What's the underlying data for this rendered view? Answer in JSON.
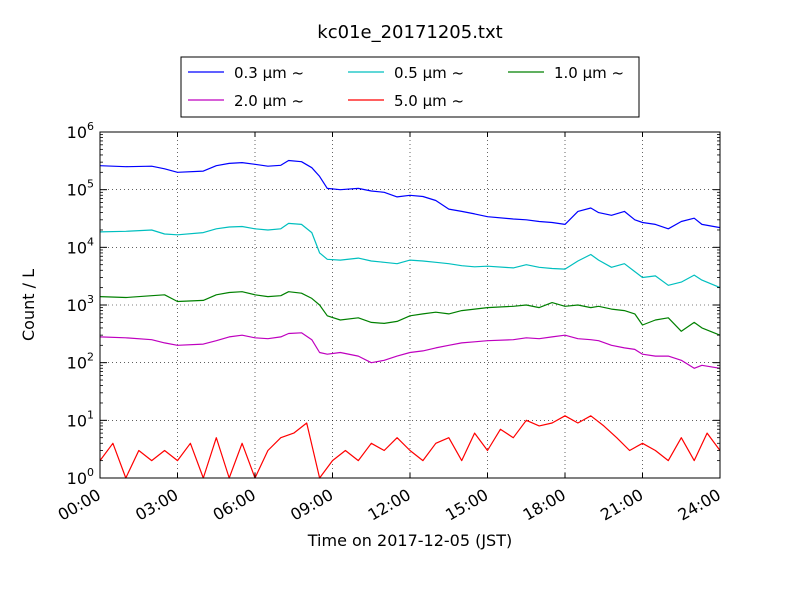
{
  "chart_data": {
    "type": "line",
    "title": "kc01e_20171205.txt",
    "xlabel": "Time on 2017-12-05 (JST)",
    "ylabel": "Count / L",
    "x_unit": "hours",
    "xlim": [
      0,
      24
    ],
    "ylim": [
      1,
      1000000
    ],
    "yscale": "log",
    "grid": true,
    "legend_location": "top-center",
    "x_ticks": [
      "00:00",
      "03:00",
      "06:00",
      "09:00",
      "12:00",
      "15:00",
      "18:00",
      "21:00",
      "24:00"
    ],
    "y_ticks": [
      {
        "base": "10",
        "exp": "0"
      },
      {
        "base": "10",
        "exp": "1"
      },
      {
        "base": "10",
        "exp": "2"
      },
      {
        "base": "10",
        "exp": "3"
      },
      {
        "base": "10",
        "exp": "4"
      },
      {
        "base": "10",
        "exp": "5"
      },
      {
        "base": "10",
        "exp": "6"
      }
    ],
    "series": [
      {
        "name": "0.3 μm ~",
        "color": "#0000ff",
        "points": [
          [
            0,
            260000
          ],
          [
            1,
            250000
          ],
          [
            2,
            255000
          ],
          [
            2.5,
            230000
          ],
          [
            3,
            200000
          ],
          [
            4,
            210000
          ],
          [
            4.5,
            260000
          ],
          [
            5,
            285000
          ],
          [
            5.5,
            295000
          ],
          [
            6,
            275000
          ],
          [
            6.5,
            255000
          ],
          [
            7,
            265000
          ],
          [
            7.3,
            320000
          ],
          [
            7.8,
            305000
          ],
          [
            8.2,
            240000
          ],
          [
            8.5,
            170000
          ],
          [
            8.8,
            105000
          ],
          [
            9.3,
            100000
          ],
          [
            10,
            105000
          ],
          [
            10.5,
            95000
          ],
          [
            11,
            90000
          ],
          [
            11.5,
            75000
          ],
          [
            12,
            80000
          ],
          [
            12.5,
            76000
          ],
          [
            13,
            65000
          ],
          [
            13.5,
            46000
          ],
          [
            14,
            42000
          ],
          [
            14.5,
            38000
          ],
          [
            15,
            34000
          ],
          [
            16,
            31000
          ],
          [
            16.5,
            30000
          ],
          [
            17,
            28000
          ],
          [
            17.5,
            27000
          ],
          [
            18,
            25000
          ],
          [
            18.5,
            42000
          ],
          [
            19,
            48000
          ],
          [
            19.3,
            40000
          ],
          [
            19.8,
            36000
          ],
          [
            20.3,
            42000
          ],
          [
            20.7,
            30000
          ],
          [
            21,
            27000
          ],
          [
            21.5,
            25000
          ],
          [
            22,
            21000
          ],
          [
            22.5,
            28000
          ],
          [
            23,
            32000
          ],
          [
            23.3,
            25000
          ],
          [
            24,
            22000
          ]
        ]
      },
      {
        "name": "0.5 μm ~",
        "color": "#00bfbf",
        "points": [
          [
            0,
            18500
          ],
          [
            1,
            19000
          ],
          [
            2,
            20000
          ],
          [
            2.5,
            17000
          ],
          [
            3,
            16500
          ],
          [
            4,
            18000
          ],
          [
            4.5,
            21000
          ],
          [
            5,
            22500
          ],
          [
            5.5,
            23000
          ],
          [
            6,
            21000
          ],
          [
            6.5,
            20000
          ],
          [
            7,
            21000
          ],
          [
            7.3,
            26000
          ],
          [
            7.8,
            25000
          ],
          [
            8.2,
            18000
          ],
          [
            8.5,
            8000
          ],
          [
            8.8,
            6200
          ],
          [
            9.3,
            6000
          ],
          [
            10,
            6500
          ],
          [
            10.5,
            5800
          ],
          [
            11,
            5500
          ],
          [
            11.5,
            5200
          ],
          [
            12,
            6000
          ],
          [
            12.5,
            5800
          ],
          [
            13,
            5500
          ],
          [
            13.5,
            5200
          ],
          [
            14,
            4800
          ],
          [
            14.5,
            4600
          ],
          [
            15,
            4700
          ],
          [
            16,
            4400
          ],
          [
            16.5,
            5000
          ],
          [
            17,
            4500
          ],
          [
            17.5,
            4300
          ],
          [
            18,
            4200
          ],
          [
            18.5,
            5800
          ],
          [
            19,
            7500
          ],
          [
            19.3,
            6000
          ],
          [
            19.8,
            4500
          ],
          [
            20.3,
            5200
          ],
          [
            20.7,
            3800
          ],
          [
            21,
            3000
          ],
          [
            21.5,
            3200
          ],
          [
            22,
            2200
          ],
          [
            22.5,
            2500
          ],
          [
            23,
            3300
          ],
          [
            23.3,
            2700
          ],
          [
            24,
            2000
          ]
        ]
      },
      {
        "name": "1.0 μm ~",
        "color": "#008000",
        "points": [
          [
            0,
            1400
          ],
          [
            1,
            1350
          ],
          [
            2,
            1450
          ],
          [
            2.5,
            1500
          ],
          [
            3,
            1150
          ],
          [
            4,
            1200
          ],
          [
            4.5,
            1500
          ],
          [
            5,
            1650
          ],
          [
            5.5,
            1700
          ],
          [
            6,
            1500
          ],
          [
            6.5,
            1400
          ],
          [
            7,
            1450
          ],
          [
            7.3,
            1700
          ],
          [
            7.8,
            1600
          ],
          [
            8.2,
            1300
          ],
          [
            8.5,
            1000
          ],
          [
            8.8,
            650
          ],
          [
            9.3,
            550
          ],
          [
            10,
            600
          ],
          [
            10.5,
            500
          ],
          [
            11,
            480
          ],
          [
            11.5,
            520
          ],
          [
            12,
            650
          ],
          [
            12.5,
            700
          ],
          [
            13,
            750
          ],
          [
            13.5,
            700
          ],
          [
            14,
            800
          ],
          [
            14.5,
            850
          ],
          [
            15,
            900
          ],
          [
            16,
            950
          ],
          [
            16.5,
            1000
          ],
          [
            17,
            900
          ],
          [
            17.5,
            1100
          ],
          [
            18,
            950
          ],
          [
            18.5,
            1000
          ],
          [
            19,
            900
          ],
          [
            19.3,
            950
          ],
          [
            19.8,
            850
          ],
          [
            20.3,
            800
          ],
          [
            20.7,
            700
          ],
          [
            21,
            450
          ],
          [
            21.5,
            550
          ],
          [
            22,
            600
          ],
          [
            22.5,
            350
          ],
          [
            23,
            500
          ],
          [
            23.3,
            400
          ],
          [
            24,
            300
          ]
        ]
      },
      {
        "name": "2.0 μm ~",
        "color": "#bf00bf",
        "points": [
          [
            0,
            280
          ],
          [
            1,
            270
          ],
          [
            2,
            250
          ],
          [
            2.5,
            220
          ],
          [
            3,
            200
          ],
          [
            4,
            210
          ],
          [
            4.5,
            240
          ],
          [
            5,
            280
          ],
          [
            5.5,
            300
          ],
          [
            6,
            270
          ],
          [
            6.5,
            260
          ],
          [
            7,
            280
          ],
          [
            7.3,
            320
          ],
          [
            7.8,
            330
          ],
          [
            8.2,
            250
          ],
          [
            8.5,
            150
          ],
          [
            8.8,
            140
          ],
          [
            9.3,
            150
          ],
          [
            10,
            130
          ],
          [
            10.5,
            100
          ],
          [
            11,
            110
          ],
          [
            11.5,
            130
          ],
          [
            12,
            150
          ],
          [
            12.5,
            160
          ],
          [
            13,
            180
          ],
          [
            13.5,
            200
          ],
          [
            14,
            220
          ],
          [
            14.5,
            230
          ],
          [
            15,
            240
          ],
          [
            16,
            250
          ],
          [
            16.5,
            270
          ],
          [
            17,
            260
          ],
          [
            17.5,
            280
          ],
          [
            18,
            300
          ],
          [
            18.5,
            260
          ],
          [
            19,
            250
          ],
          [
            19.3,
            240
          ],
          [
            19.8,
            200
          ],
          [
            20.3,
            180
          ],
          [
            20.7,
            170
          ],
          [
            21,
            140
          ],
          [
            21.5,
            130
          ],
          [
            22,
            130
          ],
          [
            22.5,
            110
          ],
          [
            23,
            80
          ],
          [
            23.3,
            90
          ],
          [
            24,
            80
          ]
        ]
      },
      {
        "name": "5.0 μm ~",
        "color": "#ff0000",
        "points": [
          [
            0,
            2
          ],
          [
            0.5,
            4
          ],
          [
            1,
            1
          ],
          [
            1.5,
            3
          ],
          [
            2,
            2
          ],
          [
            2.5,
            3
          ],
          [
            3,
            2
          ],
          [
            3.5,
            4
          ],
          [
            4,
            1
          ],
          [
            4.5,
            5
          ],
          [
            5,
            1
          ],
          [
            5.5,
            4
          ],
          [
            6,
            1
          ],
          [
            6.5,
            3
          ],
          [
            7,
            5
          ],
          [
            7.5,
            6
          ],
          [
            8,
            9
          ],
          [
            8.5,
            1
          ],
          [
            9,
            2
          ],
          [
            9.5,
            3
          ],
          [
            10,
            2
          ],
          [
            10.5,
            4
          ],
          [
            11,
            3
          ],
          [
            11.5,
            5
          ],
          [
            12,
            3
          ],
          [
            12.5,
            2
          ],
          [
            13,
            4
          ],
          [
            13.5,
            5
          ],
          [
            14,
            2
          ],
          [
            14.5,
            6
          ],
          [
            15,
            3
          ],
          [
            15.5,
            7
          ],
          [
            16,
            5
          ],
          [
            16.5,
            10
          ],
          [
            17,
            8
          ],
          [
            17.5,
            9
          ],
          [
            18,
            12
          ],
          [
            18.5,
            9
          ],
          [
            19,
            12
          ],
          [
            19.5,
            8
          ],
          [
            20,
            5
          ],
          [
            20.5,
            3
          ],
          [
            21,
            4
          ],
          [
            21.5,
            3
          ],
          [
            22,
            2
          ],
          [
            22.5,
            5
          ],
          [
            23,
            2
          ],
          [
            23.5,
            6
          ],
          [
            24,
            3
          ]
        ]
      }
    ]
  }
}
